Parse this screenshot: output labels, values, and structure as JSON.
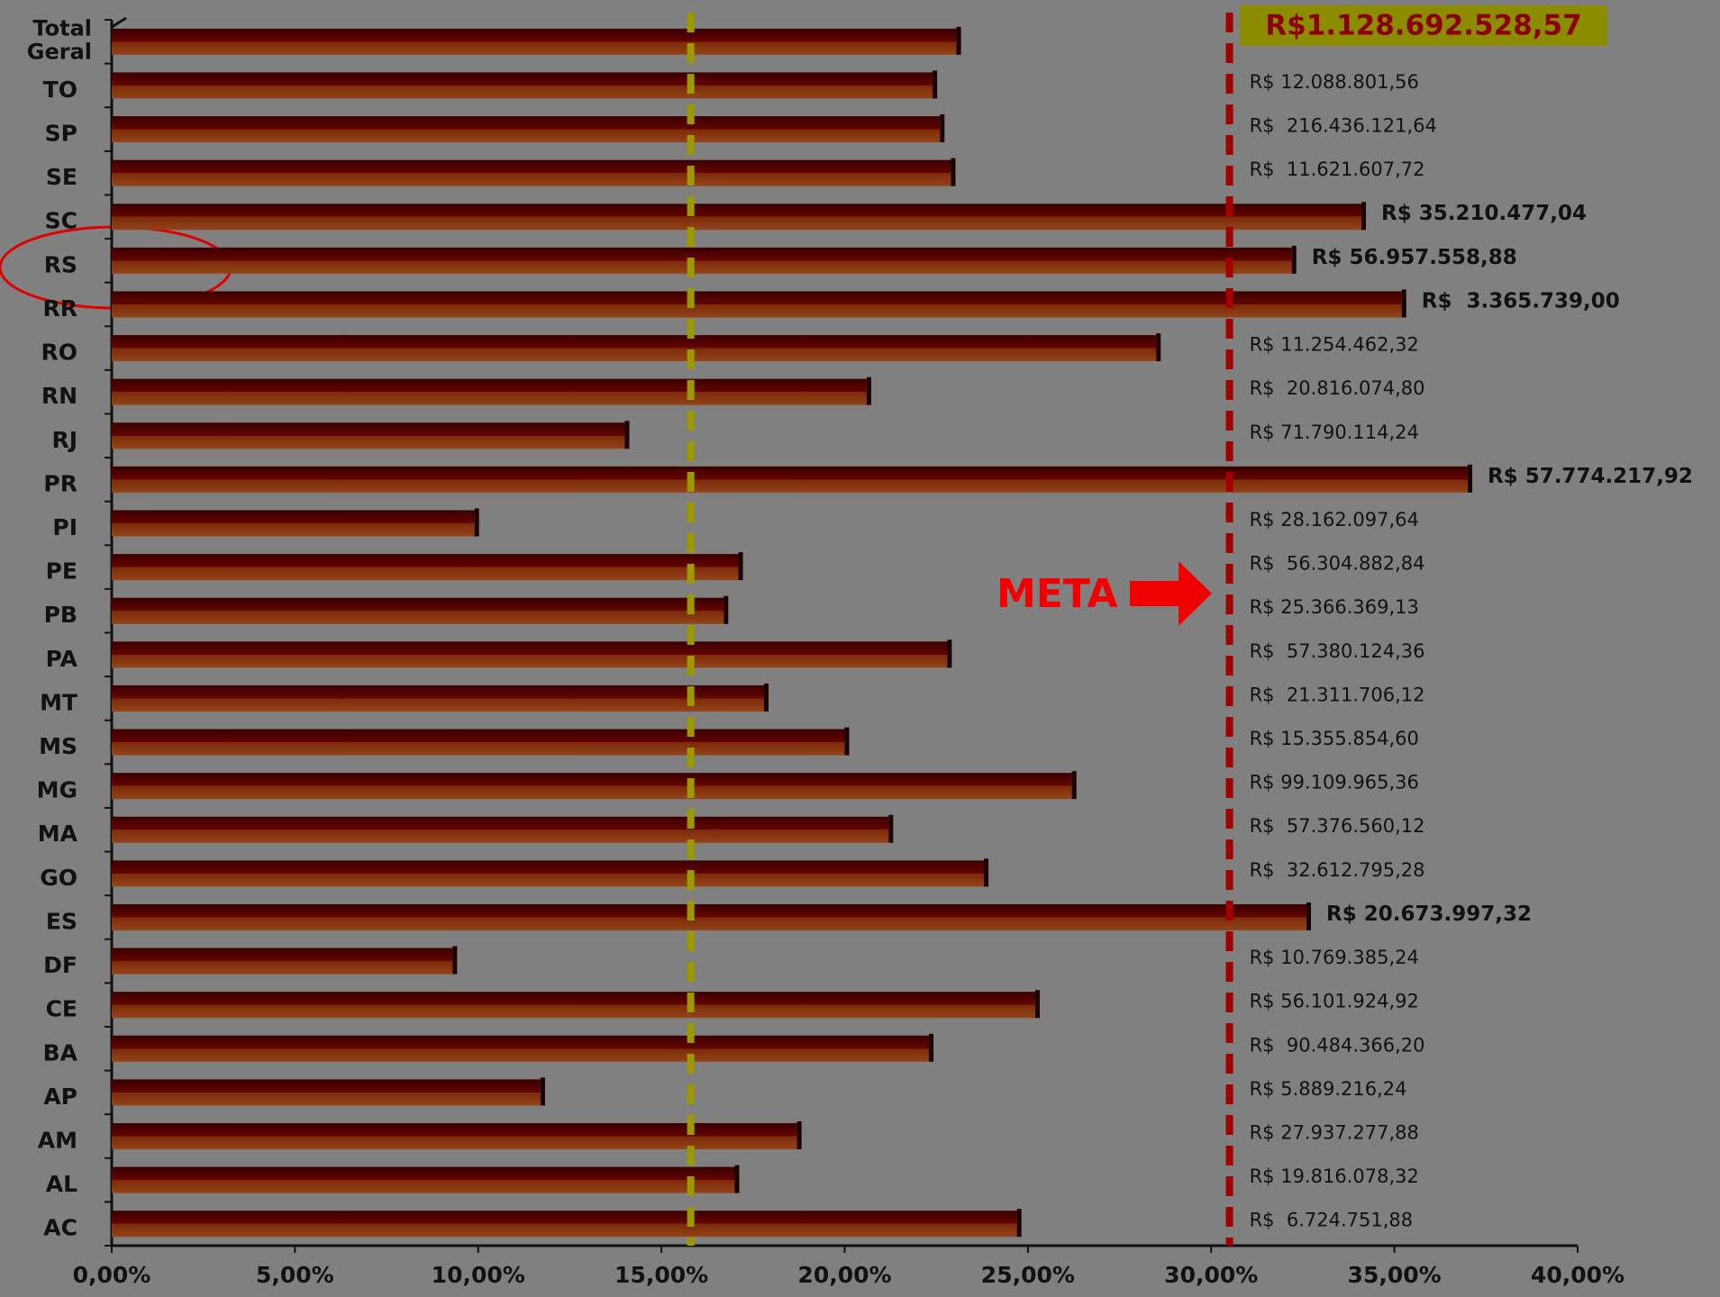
{
  "chart_data": {
    "type": "bar",
    "orientation": "horizontal",
    "categories": [
      "Total Geral",
      "TO",
      "SP",
      "SE",
      "SC",
      "RS",
      "RR",
      "RO",
      "RN",
      "RJ",
      "PR",
      "PI",
      "PE",
      "PB",
      "PA",
      "MT",
      "MS",
      "MG",
      "MA",
      "GO",
      "ES",
      "DF",
      "CE",
      "BA",
      "AP",
      "AM",
      "AL",
      "AC"
    ],
    "values": [
      23.05,
      22.4,
      22.6,
      22.9,
      34.1,
      32.2,
      35.2,
      28.5,
      20.6,
      14.0,
      37.0,
      9.9,
      17.1,
      16.7,
      22.8,
      17.8,
      20.0,
      26.2,
      21.2,
      23.8,
      32.6,
      9.3,
      25.2,
      22.3,
      11.7,
      18.7,
      17.0,
      24.7
    ],
    "amount_labels": [
      "R$1.128.692.528,57",
      "R$ 12.088.801,56",
      "R$  216.436.121,64",
      "R$  11.621.607,72",
      "R$ 35.210.477,04",
      "R$ 56.957.558,88",
      "R$  3.365.739,00",
      "R$ 11.254.462,32",
      "R$  20.816.074,80",
      "R$ 71.790.114,24",
      "R$ 57.774.217,92",
      "R$ 28.162.097,64",
      "R$  56.304.882,84",
      "R$ 25.366.369,13",
      "R$  57.380.124,36",
      "R$  21.311.706,12",
      "R$ 15.355.854,60",
      "R$ 99.109.965,36",
      "R$  57.376.560,12",
      "R$  32.612.795,28",
      "R$ 20.673.997,32",
      "R$ 10.769.385,24",
      "R$ 56.101.924,92",
      "R$  90.484.366,20",
      "R$ 5.889.216,24",
      "R$ 27.937.277,88",
      "R$ 19.816.078,32",
      "R$  6.724.751,88"
    ],
    "xlim": [
      0,
      40
    ],
    "xticks": [
      {
        "value": 0,
        "label": "0,00%"
      },
      {
        "value": 5,
        "label": "5,00%"
      },
      {
        "value": 10,
        "label": "10,00%"
      },
      {
        "value": 15,
        "label": "15,00%"
      },
      {
        "value": 20,
        "label": "20,00%"
      },
      {
        "value": 25,
        "label": "25,00%"
      },
      {
        "value": 30,
        "label": "30,00%"
      },
      {
        "value": 35,
        "label": "35,00%"
      },
      {
        "value": 40,
        "label": "40,00%"
      }
    ],
    "reference_lines": [
      {
        "value": 15.8,
        "color": "#9a9a00"
      },
      {
        "value": 30.5,
        "color": "#a30000"
      }
    ],
    "annotation": "META"
  }
}
